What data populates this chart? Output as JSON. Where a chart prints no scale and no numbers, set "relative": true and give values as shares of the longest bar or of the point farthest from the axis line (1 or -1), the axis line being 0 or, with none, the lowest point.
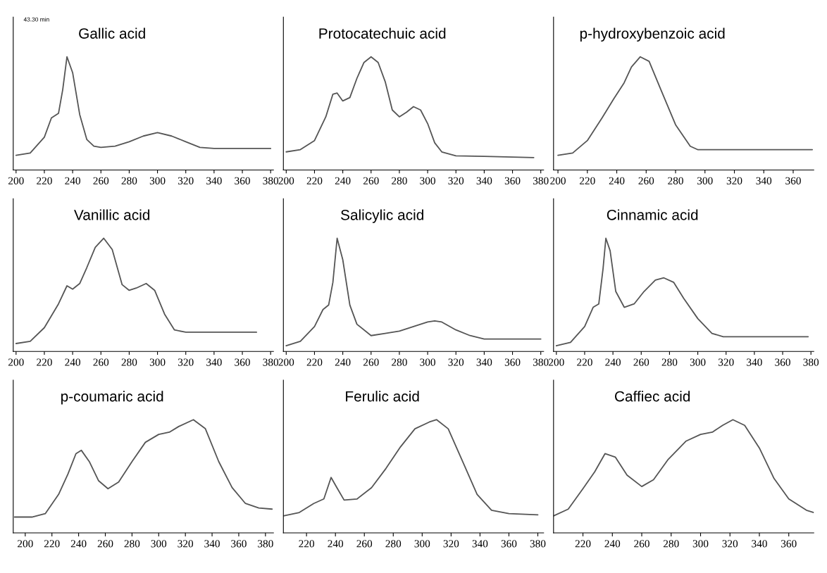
{
  "chart_data": [
    {
      "type": "line",
      "title": "Gallic acid",
      "relative": true,
      "color": "#555555",
      "xlim": [
        198,
        382
      ],
      "xticks": [
        200,
        220,
        240,
        260,
        280,
        300,
        320,
        340,
        360,
        380
      ],
      "annotations": [
        "43.30 min"
      ],
      "x": [
        200,
        210,
        220,
        225,
        230,
        233,
        236,
        240,
        245,
        250,
        255,
        260,
        270,
        280,
        290,
        300,
        310,
        320,
        330,
        340,
        380
      ],
      "values": [
        0.13,
        0.15,
        0.29,
        0.46,
        0.5,
        0.71,
        1.0,
        0.86,
        0.49,
        0.27,
        0.21,
        0.2,
        0.21,
        0.25,
        0.3,
        0.33,
        0.3,
        0.25,
        0.2,
        0.19,
        0.19
      ]
    },
    {
      "type": "line",
      "title": "Protocatechuic acid",
      "relative": true,
      "color": "#555555",
      "xlim": [
        198,
        382
      ],
      "xticks": [
        200,
        220,
        240,
        260,
        280,
        300,
        320,
        340,
        360,
        380
      ],
      "x": [
        200,
        210,
        220,
        228,
        233,
        236,
        240,
        245,
        250,
        255,
        260,
        265,
        270,
        275,
        280,
        285,
        290,
        295,
        300,
        305,
        310,
        320,
        340,
        375
      ],
      "values": [
        0.16,
        0.18,
        0.26,
        0.47,
        0.67,
        0.68,
        0.61,
        0.64,
        0.81,
        0.95,
        1.0,
        0.95,
        0.78,
        0.53,
        0.47,
        0.51,
        0.56,
        0.53,
        0.41,
        0.24,
        0.16,
        0.125,
        0.12,
        0.11
      ]
    },
    {
      "type": "line",
      "title": "p-hydroxybenzoic acid",
      "relative": true,
      "color": "#555555",
      "xlim": [
        197,
        374
      ],
      "xticks": [
        200,
        220,
        240,
        260,
        280,
        300,
        320,
        340,
        360
      ],
      "x": [
        200,
        210,
        220,
        230,
        238,
        245,
        250,
        256,
        262,
        270,
        280,
        290,
        295,
        373
      ],
      "values": [
        0.13,
        0.15,
        0.26,
        0.46,
        0.63,
        0.77,
        0.91,
        1.0,
        0.96,
        0.71,
        0.4,
        0.21,
        0.18,
        0.18
      ]
    },
    {
      "type": "line",
      "title": "Vanillic acid",
      "relative": true,
      "color": "#555555",
      "xlim": [
        198,
        382
      ],
      "xticks": [
        200,
        220,
        240,
        260,
        280,
        300,
        320,
        340,
        360,
        380
      ],
      "x": [
        200,
        210,
        220,
        230,
        236,
        240,
        245,
        250,
        256,
        262,
        268,
        275,
        280,
        285,
        292,
        298,
        305,
        312,
        320,
        370
      ],
      "values": [
        0.07,
        0.09,
        0.21,
        0.42,
        0.58,
        0.55,
        0.6,
        0.74,
        0.92,
        1.0,
        0.9,
        0.59,
        0.54,
        0.56,
        0.6,
        0.54,
        0.33,
        0.19,
        0.17,
        0.17
      ]
    },
    {
      "type": "line",
      "title": "Salicylic acid",
      "relative": true,
      "color": "#555555",
      "xlim": [
        198,
        382
      ],
      "xticks": [
        200,
        220,
        240,
        260,
        280,
        300,
        320,
        340,
        360,
        380
      ],
      "x": [
        200,
        210,
        220,
        226,
        230,
        233,
        236,
        240,
        245,
        250,
        260,
        270,
        280,
        290,
        300,
        305,
        310,
        320,
        330,
        340,
        380
      ],
      "values": [
        0.05,
        0.09,
        0.22,
        0.37,
        0.41,
        0.61,
        1.0,
        0.81,
        0.41,
        0.24,
        0.14,
        0.16,
        0.18,
        0.22,
        0.26,
        0.27,
        0.26,
        0.19,
        0.14,
        0.11,
        0.11
      ]
    },
    {
      "type": "line",
      "title": "Cinnamic acid",
      "relative": true,
      "color": "#555555",
      "xlim": [
        198,
        382
      ],
      "xticks": [
        200,
        220,
        240,
        260,
        280,
        300,
        320,
        340,
        360,
        380
      ],
      "x": [
        200,
        210,
        220,
        226,
        230,
        233,
        235,
        238,
        242,
        248,
        255,
        262,
        270,
        276,
        283,
        290,
        300,
        310,
        318,
        378
      ],
      "values": [
        0.05,
        0.08,
        0.22,
        0.39,
        0.42,
        0.73,
        1.0,
        0.89,
        0.53,
        0.39,
        0.42,
        0.53,
        0.63,
        0.65,
        0.61,
        0.47,
        0.29,
        0.16,
        0.13,
        0.13
      ]
    },
    {
      "type": "line",
      "title": "p-coumaric acid",
      "relative": true,
      "color": "#555555",
      "xlim": [
        191,
        386
      ],
      "xticks": [
        200,
        220,
        240,
        260,
        280,
        300,
        320,
        340,
        360,
        380
      ],
      "x": [
        192,
        205,
        215,
        225,
        232,
        238,
        242,
        248,
        255,
        262,
        270,
        280,
        290,
        300,
        308,
        315,
        326,
        335,
        345,
        355,
        365,
        375,
        385
      ],
      "values": [
        0.14,
        0.14,
        0.17,
        0.34,
        0.52,
        0.7,
        0.73,
        0.63,
        0.46,
        0.39,
        0.45,
        0.63,
        0.8,
        0.87,
        0.89,
        0.94,
        1.0,
        0.92,
        0.63,
        0.4,
        0.26,
        0.22,
        0.21
      ]
    },
    {
      "type": "line",
      "title": "Ferulic acid",
      "relative": true,
      "color": "#555555",
      "xlim": [
        204,
        384
      ],
      "xticks": [
        220,
        240,
        260,
        280,
        300,
        320,
        340,
        360,
        380
      ],
      "x": [
        204,
        215,
        225,
        232,
        237,
        241,
        246,
        255,
        265,
        275,
        285,
        295,
        305,
        310,
        318,
        328,
        338,
        348,
        360,
        380
      ],
      "values": [
        0.15,
        0.18,
        0.26,
        0.3,
        0.49,
        0.4,
        0.29,
        0.3,
        0.4,
        0.57,
        0.76,
        0.92,
        0.98,
        1.0,
        0.92,
        0.63,
        0.34,
        0.2,
        0.17,
        0.16
      ]
    },
    {
      "type": "line",
      "title": "Caffiec acid",
      "relative": true,
      "color": "#555555",
      "xlim": [
        200,
        377
      ],
      "xticks": [
        220,
        240,
        260,
        280,
        300,
        320,
        340,
        360
      ],
      "x": [
        200,
        210,
        220,
        228,
        235,
        242,
        250,
        260,
        268,
        278,
        290,
        300,
        308,
        315,
        322,
        330,
        340,
        350,
        360,
        372,
        377
      ],
      "values": [
        0.15,
        0.21,
        0.39,
        0.54,
        0.7,
        0.67,
        0.51,
        0.41,
        0.47,
        0.65,
        0.81,
        0.87,
        0.89,
        0.95,
        1.0,
        0.95,
        0.75,
        0.48,
        0.3,
        0.2,
        0.18
      ]
    }
  ]
}
